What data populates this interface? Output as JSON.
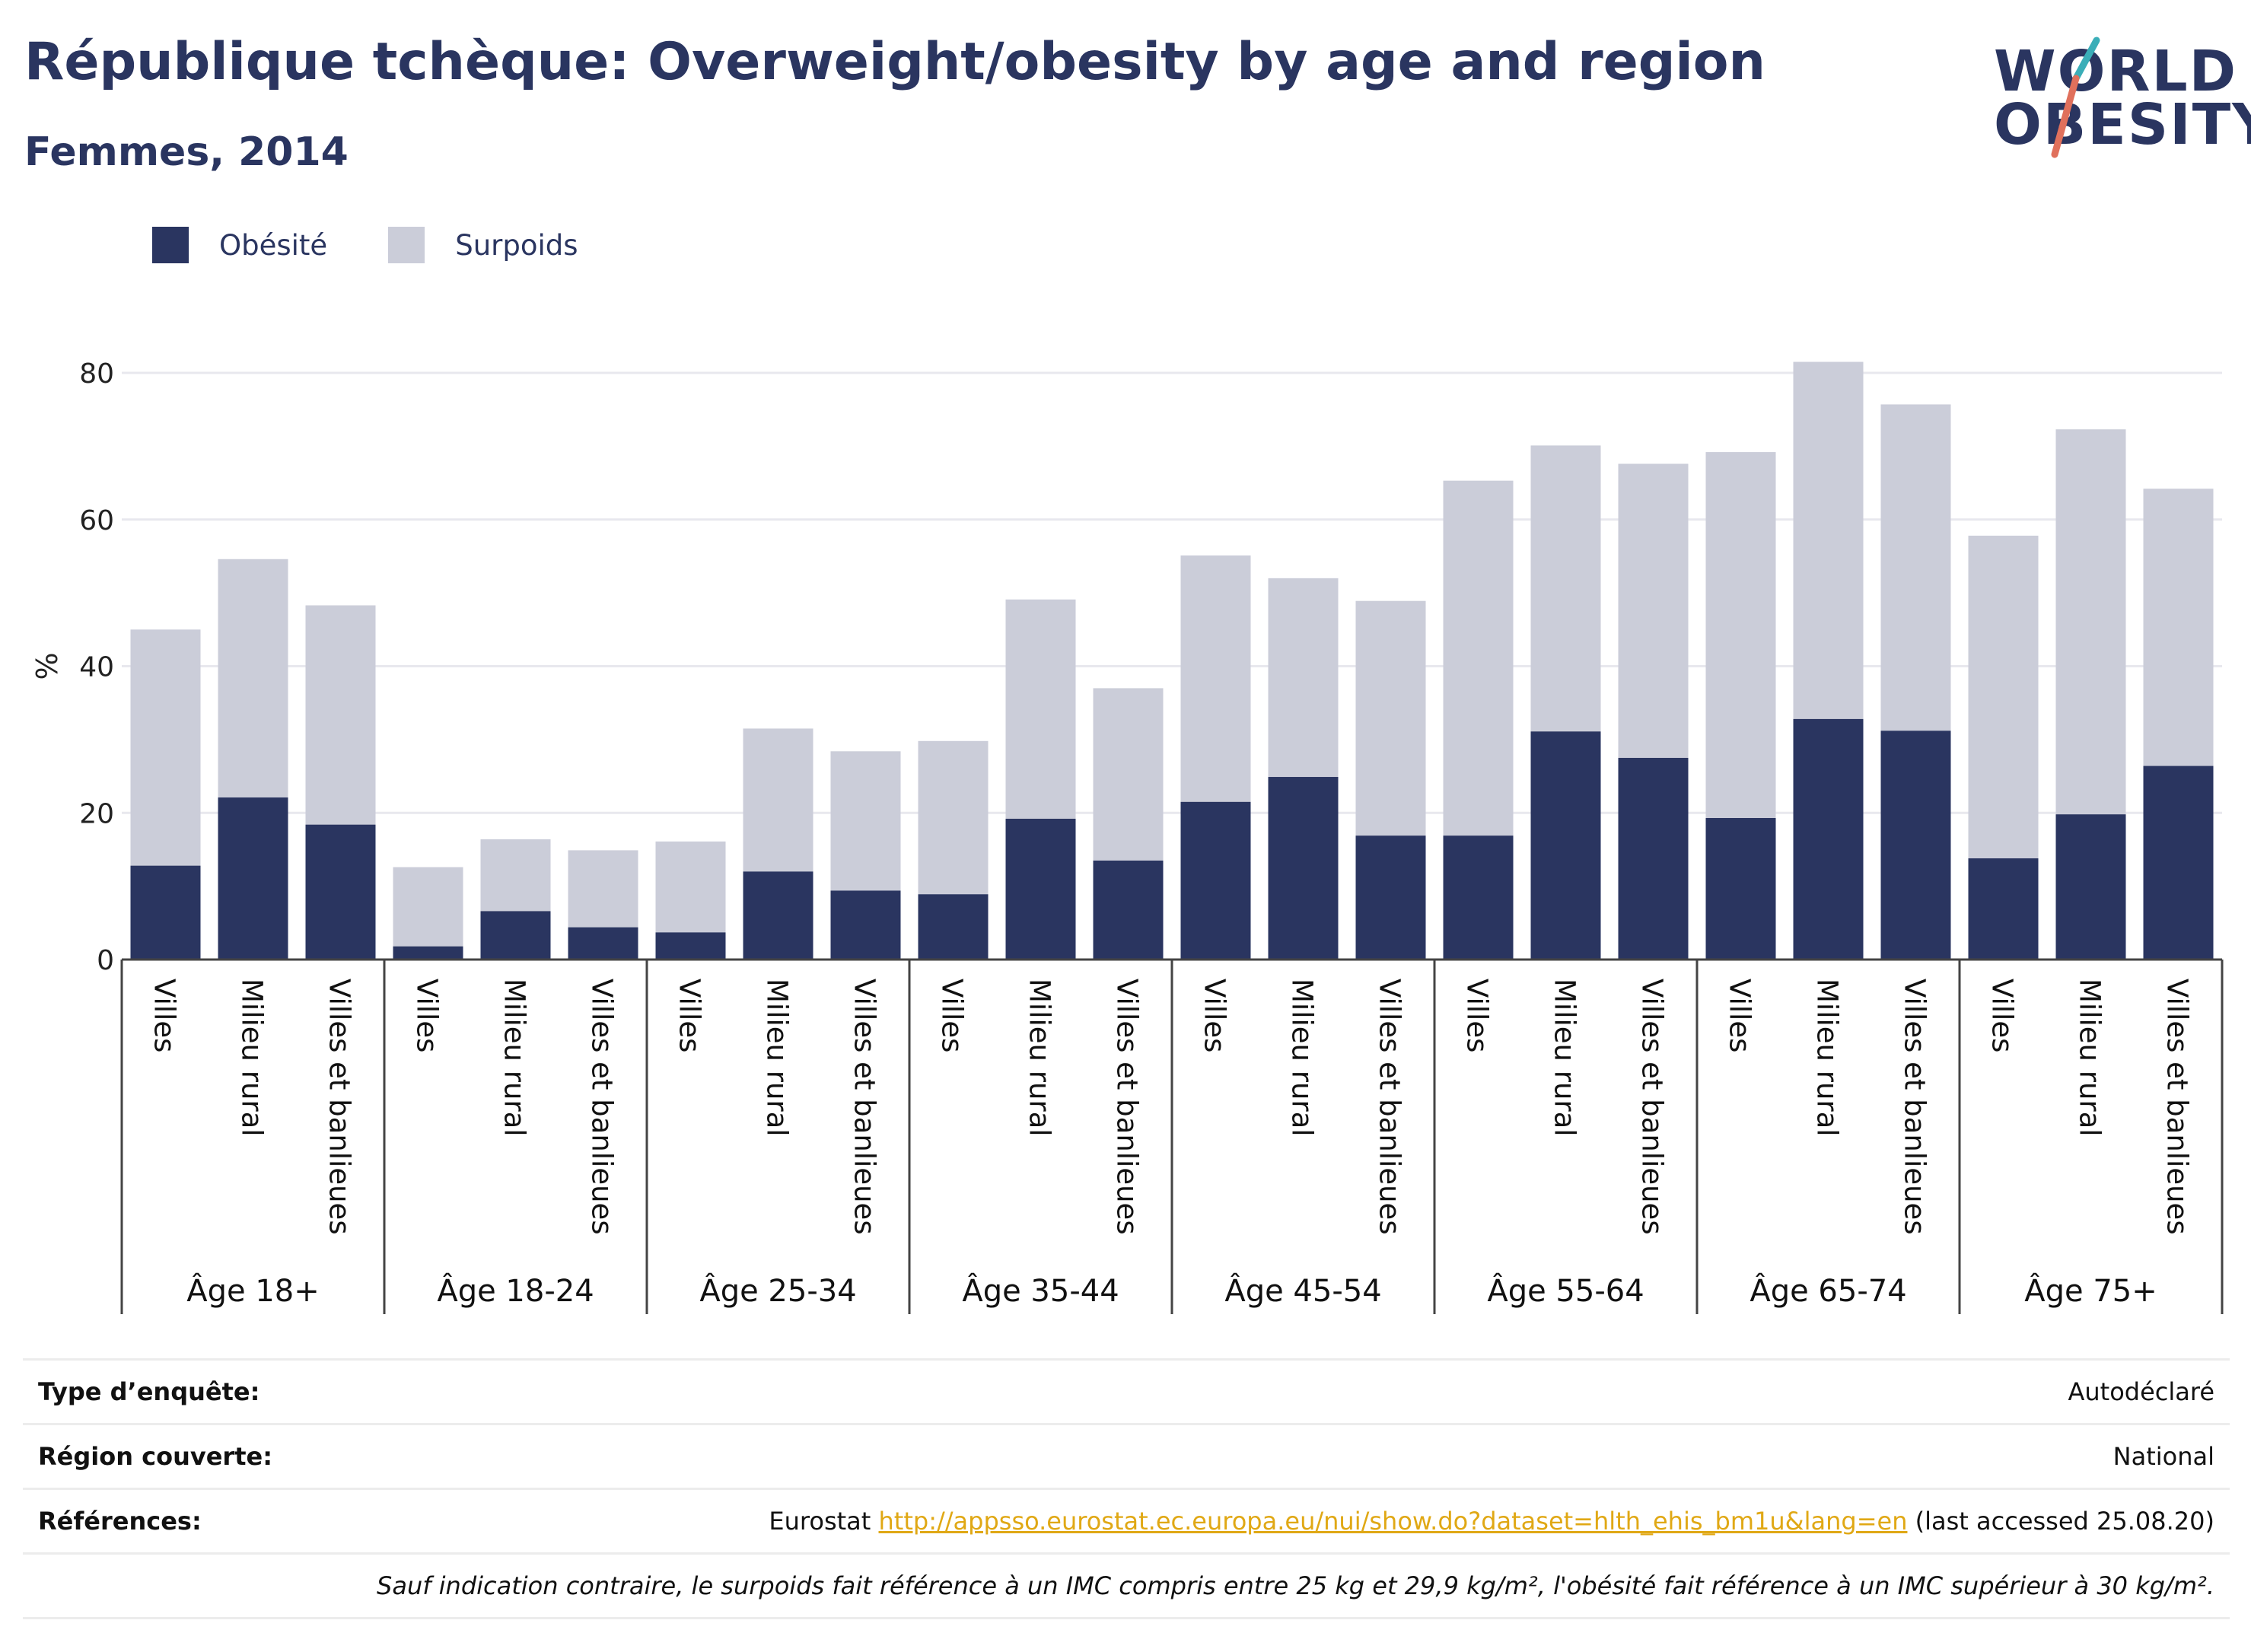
{
  "title": "République tchèque: Overweight/obesity by age and region",
  "subtitle": "Femmes, 2014",
  "logo": {
    "line1": "WORLD",
    "line2": "OBESITY"
  },
  "colors": {
    "obesity": "#2a3560",
    "overweight": "#cbcdd9",
    "accent_teal": "#3aaeb8",
    "accent_red": "#e0705c",
    "grid": "#e8e8ee",
    "link": "#e0a815"
  },
  "legend": {
    "obesity": "Obésité",
    "overweight": "Surpoids"
  },
  "chart_data": {
    "type": "bar",
    "stacked": true,
    "ylabel": "%",
    "ylim": [
      0,
      85
    ],
    "yticks": [
      0,
      20,
      40,
      60,
      80
    ],
    "grid": true,
    "legend_position": "top-left",
    "groups": [
      "Âge 18+",
      "Âge 18-24",
      "Âge 25-34",
      "Âge 35-44",
      "Âge 45-54",
      "Âge 55-64",
      "Âge 65-74",
      "Âge 75+"
    ],
    "subcategories": [
      "Villes",
      "Milieu rural",
      "Villes et banlieues"
    ],
    "series": [
      {
        "name": "Obésité",
        "values": [
          [
            12.8,
            22.1,
            18.4
          ],
          [
            1.8,
            6.6,
            4.4
          ],
          [
            3.7,
            12.0,
            9.4
          ],
          [
            8.9,
            19.2,
            13.5
          ],
          [
            21.5,
            24.9,
            16.9
          ],
          [
            16.9,
            31.1,
            27.5
          ],
          [
            19.3,
            32.8,
            31.2
          ],
          [
            13.8,
            19.8,
            26.4
          ]
        ]
      },
      {
        "name": "Surpoids",
        "values": [
          [
            32.2,
            32.5,
            29.9
          ],
          [
            10.8,
            9.8,
            10.5
          ],
          [
            12.4,
            19.5,
            19.0
          ],
          [
            20.9,
            29.9,
            23.5
          ],
          [
            33.6,
            27.1,
            32.0
          ],
          [
            48.4,
            39.0,
            40.1
          ],
          [
            49.9,
            48.7,
            44.5
          ],
          [
            44.0,
            52.5,
            37.8
          ]
        ]
      }
    ]
  },
  "footer": {
    "survey_type_label": "Type d’enquête:",
    "survey_type_value": "Autodéclaré",
    "region_label": "Région couverte:",
    "region_value": "National",
    "references_label": "Références:",
    "references_prefix": "Eurostat ",
    "references_link": "http://appsso.eurostat.ec.europa.eu/nui/show.do?dataset=hlth_ehis_bm1u&lang=en",
    "references_suffix": " (last accessed 25.08.20)",
    "note": "Sauf indication contraire, le surpoids fait référence à un IMC compris entre 25 kg et 29,9 kg/m², l'obésité fait référence à un IMC supérieur à 30 kg/m²."
  }
}
